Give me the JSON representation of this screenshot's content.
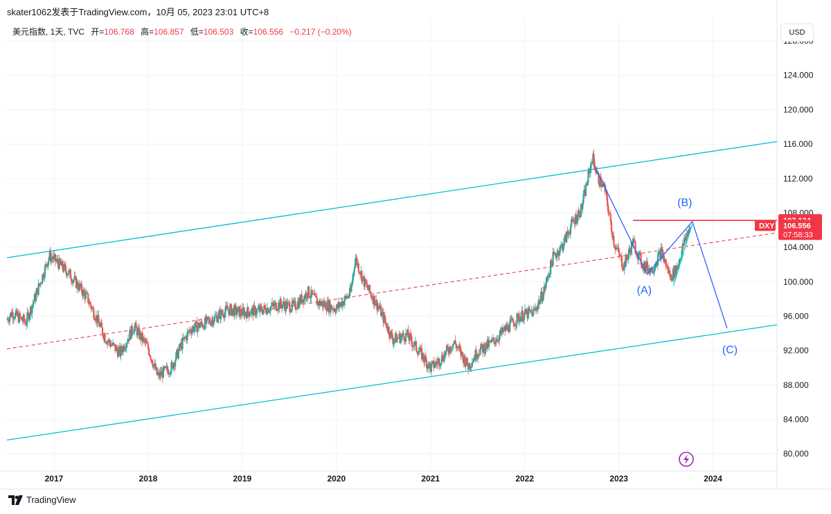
{
  "header": {
    "publisher": "skater1062发表于TradingView.com，10月 05, 2023 23:01 UTC+8"
  },
  "legend": {
    "symbol": "美元指数, 1天, TVC",
    "open_label": "开=",
    "open": "106.768",
    "high_label": "高=",
    "high": "106.857",
    "low_label": "低=",
    "low": "106.503",
    "close_label": "收=",
    "close": "106.556",
    "change": "−0.217 (−0.20%)"
  },
  "currency_button": "USD",
  "price_tags": {
    "level": "107.134",
    "symbol": "DXY",
    "price": "106.556",
    "countdown": "07:58:33"
  },
  "footer": {
    "brand": "TradingView"
  },
  "colors": {
    "up": "#26a69a",
    "down": "#ef5350",
    "channel": "#00bcd4",
    "midline": "#f23645",
    "wave": "#2962ff",
    "level": "#f23645"
  },
  "chart_data": {
    "type": "candlestick",
    "symbol": "DXY",
    "timeframe": "1D",
    "ylim": [
      78.0,
      130.5
    ],
    "yticks": [
      80,
      84,
      88,
      92,
      96,
      100,
      104,
      108,
      112,
      116,
      120,
      124,
      128
    ],
    "ytick_labels": [
      "80.000",
      "84.000",
      "88.000",
      "92.000",
      "96.000",
      "100.000",
      "104.000",
      "108.000",
      "112.000",
      "116.000",
      "120.000",
      "124.000",
      "128.000"
    ],
    "xlim": [
      2016.5,
      2024.68
    ],
    "xticks": [
      2017,
      2018,
      2019,
      2020,
      2021,
      2022,
      2023,
      2024
    ],
    "xtick_labels": [
      "2017",
      "2018",
      "2019",
      "2020",
      "2021",
      "2022",
      "2023",
      "2024"
    ],
    "price_path": [
      [
        2016.5,
        95.6
      ],
      [
        2016.55,
        96.4
      ],
      [
        2016.7,
        95.3
      ],
      [
        2016.8,
        98.2
      ],
      [
        2016.95,
        103.0
      ],
      [
        2017.0,
        102.6
      ],
      [
        2017.15,
        101.1
      ],
      [
        2017.35,
        98.2
      ],
      [
        2017.55,
        93.4
      ],
      [
        2017.7,
        91.7
      ],
      [
        2017.85,
        94.8
      ],
      [
        2018.0,
        92.3
      ],
      [
        2018.1,
        89.0
      ],
      [
        2018.25,
        90.1
      ],
      [
        2018.35,
        92.6
      ],
      [
        2018.45,
        94.5
      ],
      [
        2018.65,
        95.4
      ],
      [
        2018.85,
        96.8
      ],
      [
        2019.0,
        96.4
      ],
      [
        2019.2,
        96.7
      ],
      [
        2019.4,
        97.4
      ],
      [
        2019.55,
        97.1
      ],
      [
        2019.7,
        98.8
      ],
      [
        2019.8,
        97.6
      ],
      [
        2020.0,
        96.9
      ],
      [
        2020.15,
        98.7
      ],
      [
        2020.2,
        102.8
      ],
      [
        2020.3,
        99.8
      ],
      [
        2020.45,
        97.0
      ],
      [
        2020.6,
        93.3
      ],
      [
        2020.75,
        93.8
      ],
      [
        2020.9,
        91.6
      ],
      [
        2021.0,
        90.0
      ],
      [
        2021.1,
        90.9
      ],
      [
        2021.25,
        93.0
      ],
      [
        2021.4,
        90.2
      ],
      [
        2021.5,
        91.9
      ],
      [
        2021.65,
        92.9
      ],
      [
        2021.8,
        94.5
      ],
      [
        2021.95,
        96.0
      ],
      [
        2022.1,
        96.5
      ],
      [
        2022.2,
        98.8
      ],
      [
        2022.3,
        102.8
      ],
      [
        2022.4,
        104.2
      ],
      [
        2022.5,
        106.7
      ],
      [
        2022.6,
        108.4
      ],
      [
        2022.72,
        114.5
      ],
      [
        2022.78,
        112.0
      ],
      [
        2022.85,
        110.8
      ],
      [
        2022.95,
        104.5
      ],
      [
        2023.05,
        101.8
      ],
      [
        2023.15,
        104.6
      ],
      [
        2023.25,
        102.0
      ],
      [
        2023.35,
        101.4
      ],
      [
        2023.45,
        103.5
      ],
      [
        2023.55,
        100.5
      ],
      [
        2023.62,
        101.7
      ],
      [
        2023.7,
        104.8
      ],
      [
        2023.76,
        106.6
      ]
    ],
    "channel_upper": [
      [
        2016.5,
        102.8
      ],
      [
        2024.68,
        116.3
      ]
    ],
    "channel_lower": [
      [
        2016.5,
        81.6
      ],
      [
        2024.68,
        95.0
      ]
    ],
    "midline": [
      [
        2016.5,
        92.2
      ],
      [
        2024.68,
        105.7
      ]
    ],
    "wave_path": [
      [
        2022.74,
        113.5
      ],
      [
        2023.3,
        100.9
      ],
      [
        2023.78,
        107.0
      ],
      [
        2024.15,
        94.6
      ]
    ],
    "wave_b_to_c_inner": [
      [
        2023.58,
        99.5
      ],
      [
        2023.78,
        106.7
      ]
    ],
    "wave_labels": [
      {
        "text": "(A)",
        "x": 2023.27,
        "y": 98.6
      },
      {
        "text": "(B)",
        "x": 2023.7,
        "y": 108.8
      },
      {
        "text": "(C)",
        "x": 2024.18,
        "y": 91.7
      }
    ],
    "horizontal_level": {
      "value": 107.134,
      "from": 2023.15,
      "to": 2024.68
    },
    "last_price": 106.556
  }
}
